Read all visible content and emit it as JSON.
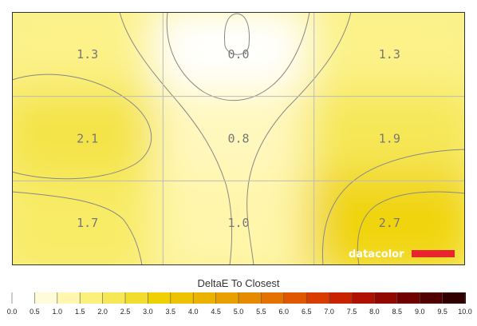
{
  "chart_data": {
    "type": "heatmap",
    "title": "DeltaE To Closest",
    "rows": 3,
    "cols": 3,
    "values": [
      [
        1.3,
        0.0,
        1.3
      ],
      [
        2.1,
        0.8,
        1.9
      ],
      [
        1.7,
        1.0,
        2.7
      ]
    ],
    "value_labels": [
      [
        "1.3",
        "0.0",
        "1.3"
      ],
      [
        "2.1",
        "0.8",
        "1.9"
      ],
      [
        "1.7",
        "1.0",
        "2.7"
      ]
    ],
    "color_scale": {
      "min": 0.0,
      "max": 10.0,
      "ticks": [
        "0.0",
        "0.5",
        "1.0",
        "1.5",
        "2.0",
        "2.5",
        "3.0",
        "3.5",
        "4.0",
        "4.5",
        "5.0",
        "5.5",
        "6.0",
        "6.5",
        "7.0",
        "7.5",
        "8.0",
        "8.5",
        "9.0",
        "9.5",
        "10.0"
      ],
      "colors": [
        "#ffffff",
        "#fffbd9",
        "#fff7b0",
        "#fbf07a",
        "#f6e756",
        "#f2dd2e",
        "#efd000",
        "#edc200",
        "#ebb200",
        "#e8a000",
        "#e68a00",
        "#e37200",
        "#df5800",
        "#d83c00",
        "#c82200",
        "#b01000",
        "#900800",
        "#700000",
        "#500000",
        "#300000",
        "#000000"
      ]
    },
    "grid": true,
    "legend": "bottom"
  },
  "brand": {
    "name": "datacolor",
    "accent": "#e8252d"
  }
}
